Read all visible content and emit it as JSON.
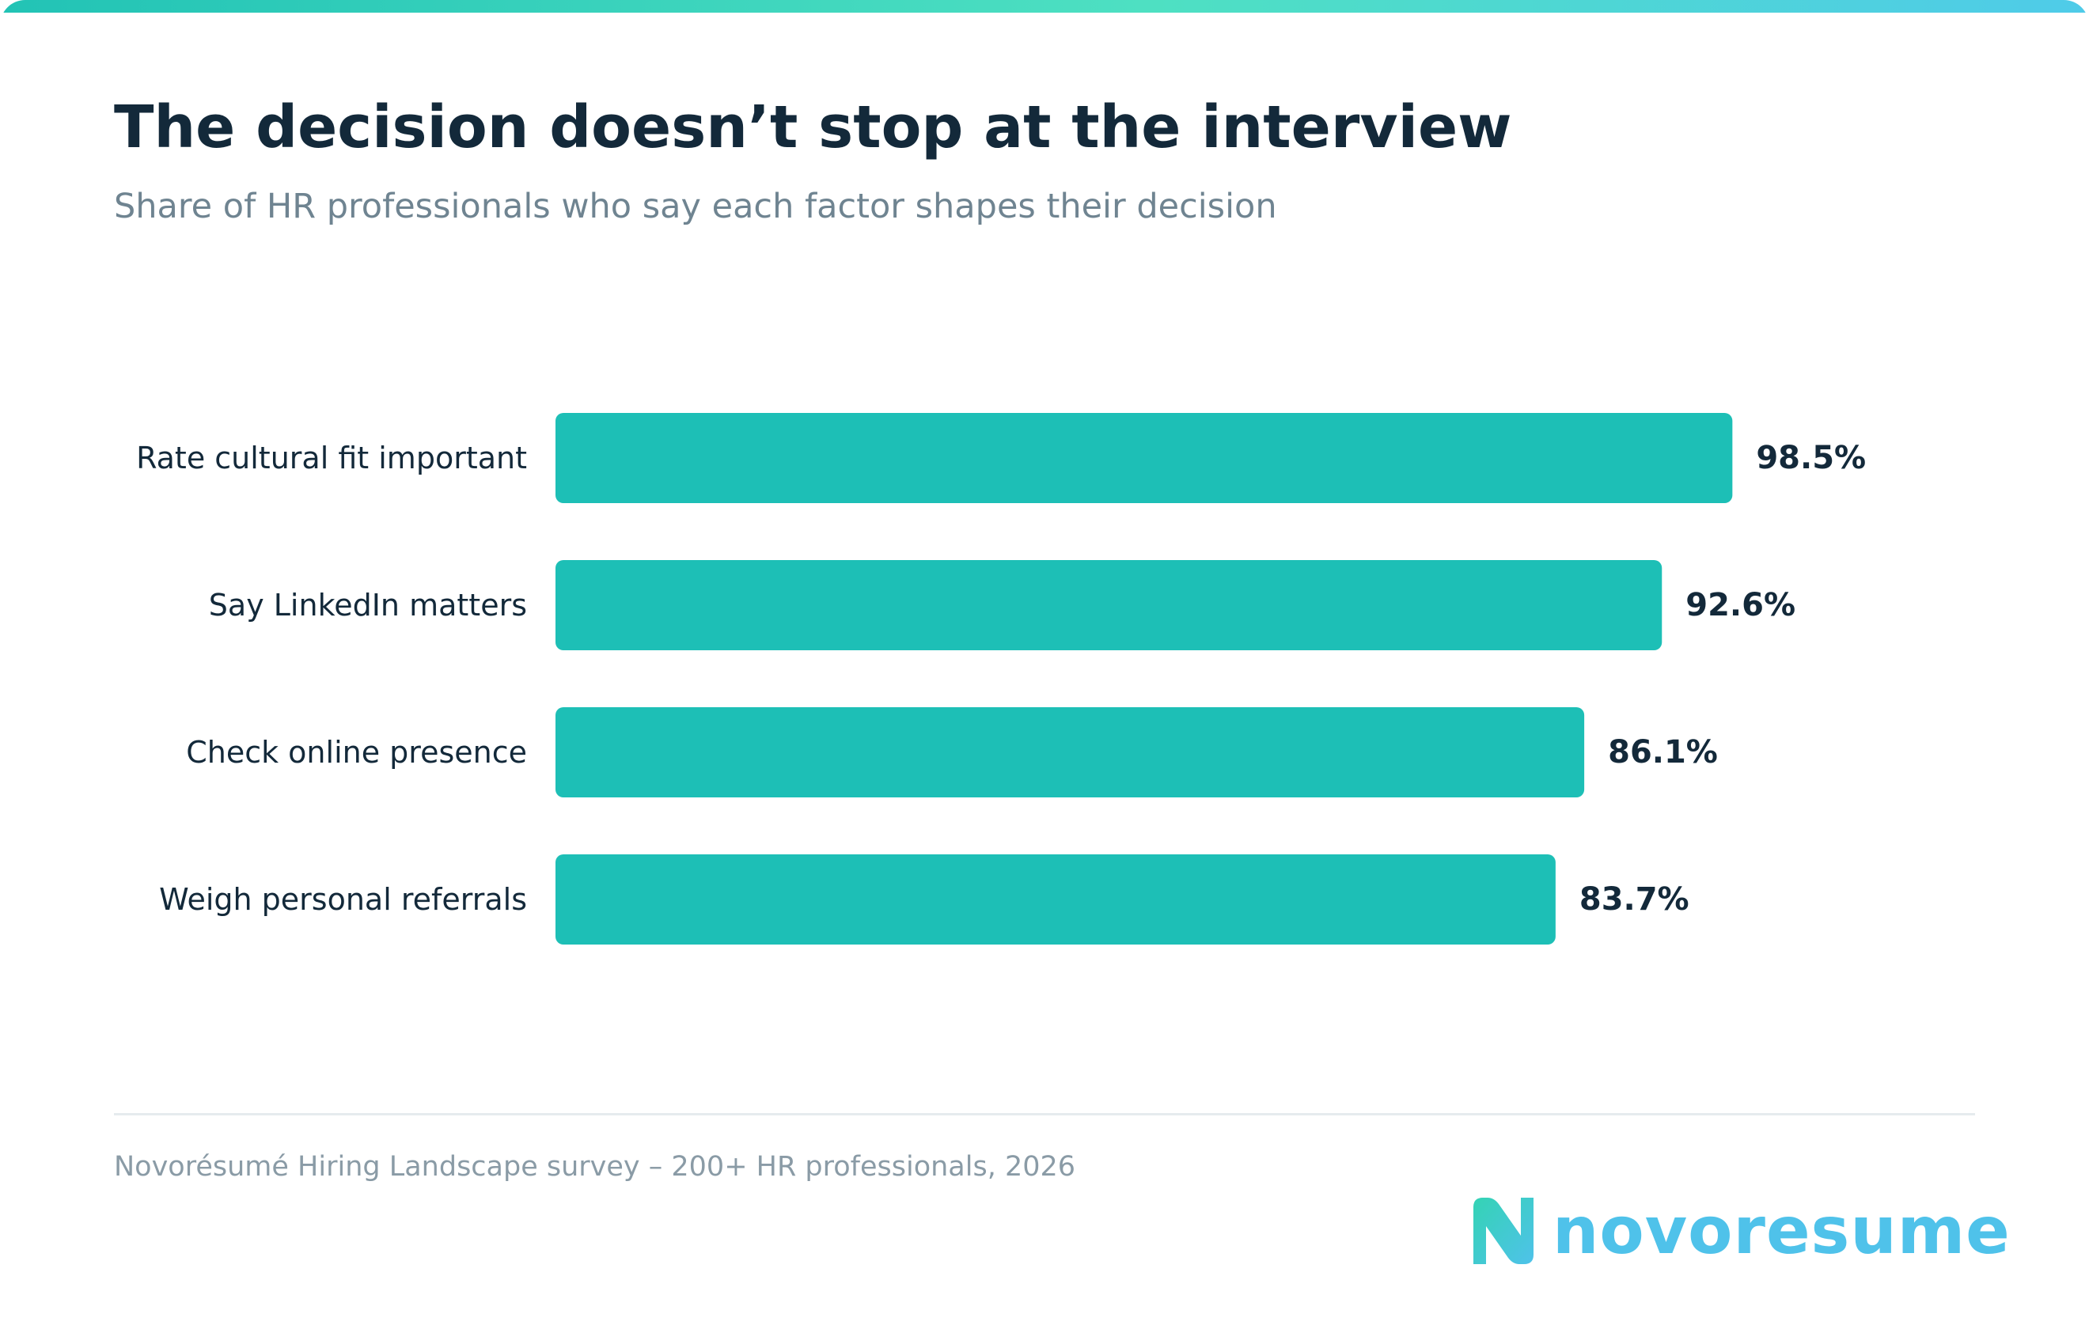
{
  "header": {
    "title": "The decision doesn’t stop at the interview",
    "subtitle": "Share of HR professionals who say each factor shapes their decision"
  },
  "chart_data": {
    "type": "bar",
    "orientation": "horizontal",
    "categories": [
      "Rate cultural fit important",
      "Say LinkedIn matters",
      "Check online presence",
      "Weigh personal referrals"
    ],
    "values": [
      98.5,
      92.6,
      86.1,
      83.7
    ],
    "value_labels": [
      "98.5%",
      "92.6%",
      "86.1%",
      "83.7%"
    ],
    "unit": "%",
    "xlim": [
      0,
      100
    ],
    "grid": false,
    "legend": "none",
    "bar_color": "#1dbfb6"
  },
  "footer": {
    "source": "Novorésumé Hiring Landscape survey – 200+ HR professionals, 2026"
  },
  "logo": {
    "wordmark": "novoresume",
    "mark_icon": "n-logo-icon"
  },
  "colors": {
    "title": "#13293a",
    "subtitle": "#6f8491",
    "source": "#8a9ba6",
    "accent_teal": "#1dbfb6",
    "logo_blue": "#4fc2ea"
  }
}
